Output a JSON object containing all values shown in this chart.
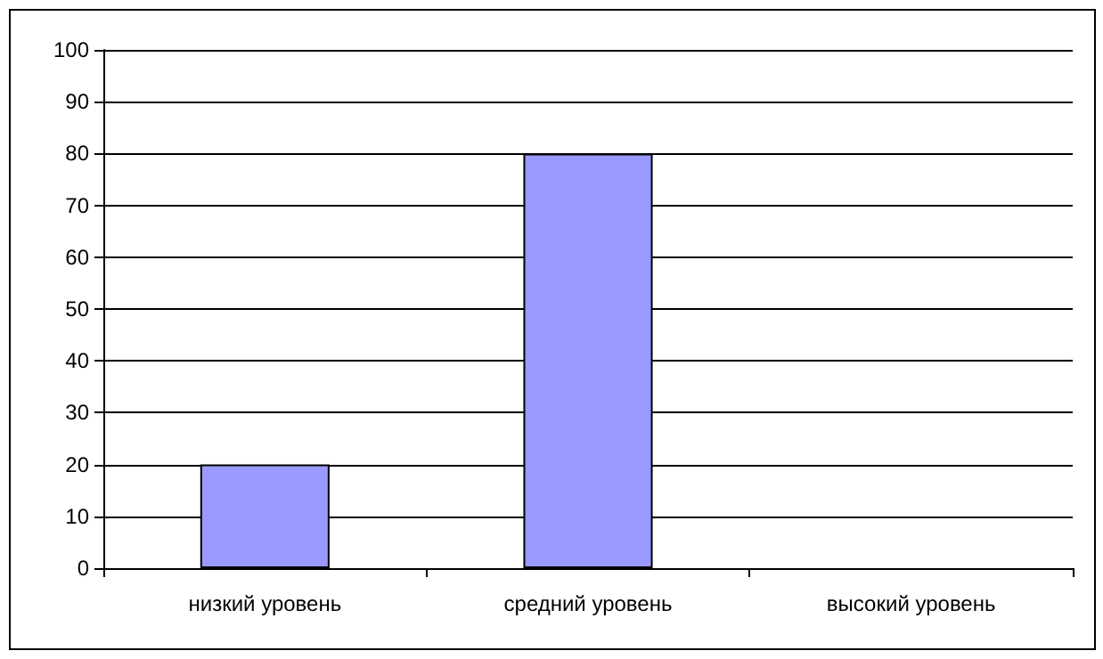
{
  "chart_data": {
    "type": "bar",
    "categories": [
      "низкий уровень",
      "средний уровень",
      "высокий уровень"
    ],
    "values": [
      20,
      80,
      0
    ],
    "color": "#9999ff",
    "ylim": [
      0,
      100
    ],
    "yticks": [
      0,
      10,
      20,
      30,
      40,
      50,
      60,
      70,
      80,
      90,
      100
    ],
    "grid": "y"
  }
}
